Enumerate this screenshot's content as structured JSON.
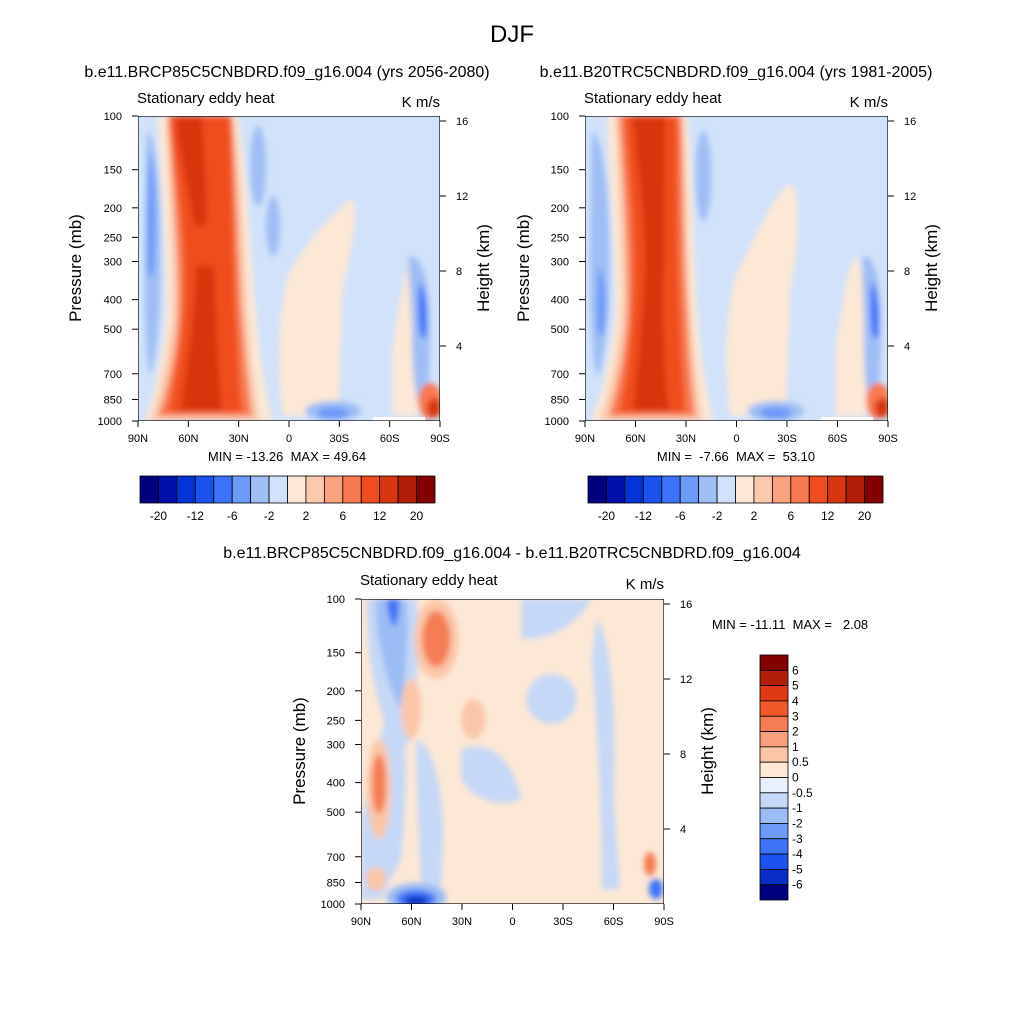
{
  "figure": {
    "title": "DJF"
  },
  "chart_data": [
    {
      "type": "heatmap",
      "title": "b.e11.BRCP85C5CNBDRD.f09_g16.004 (yrs 2056-2080)",
      "left_label": "Stationary eddy heat",
      "units": "K m/s",
      "xlabel": "",
      "ylabel": "Pressure (mb)",
      "ylabel_right": "Height (km)",
      "x_ticks": [
        "90N",
        "60N",
        "30N",
        "0",
        "30S",
        "60S",
        "90S"
      ],
      "y_ticks": [
        "100",
        "150",
        "200",
        "250",
        "300",
        "400",
        "500",
        "700",
        "850",
        "1000"
      ],
      "y_ticks_right": [
        "16",
        "12",
        "8",
        "4"
      ],
      "xlim": [
        90,
        -90
      ],
      "ylim": [
        1000,
        100
      ],
      "stats": "MIN = -13.26  MAX = 49.64",
      "min": -13.26,
      "max": 49.64,
      "colorbar": {
        "orientation": "horizontal",
        "tick_labels": [
          "-20",
          "-12",
          "-6",
          "-2",
          "2",
          "6",
          "12",
          "20"
        ],
        "colors": [
          "#00007d",
          "#0011aa",
          "#0533d5",
          "#1c52ee",
          "#3d73f8",
          "#6c9af8",
          "#9fbef5",
          "#d1e2fa",
          "#fde8d6",
          "#fbc9ad",
          "#f9a27e",
          "#f8794f",
          "#f04d1e",
          "#d83611",
          "#b21f08",
          "#820000"
        ]
      }
    },
    {
      "type": "heatmap",
      "title": "b.e11.B20TRC5CNBDRD.f09_g16.004 (yrs 1981-2005)",
      "left_label": "Stationary eddy heat",
      "units": "K m/s",
      "xlabel": "",
      "ylabel": "Pressure (mb)",
      "ylabel_right": "Height (km)",
      "x_ticks": [
        "90N",
        "60N",
        "30N",
        "0",
        "30S",
        "60S",
        "90S"
      ],
      "y_ticks": [
        "100",
        "150",
        "200",
        "250",
        "300",
        "400",
        "500",
        "700",
        "850",
        "1000"
      ],
      "y_ticks_right": [
        "16",
        "12",
        "8",
        "4"
      ],
      "xlim": [
        90,
        -90
      ],
      "ylim": [
        1000,
        100
      ],
      "stats": "MIN =  -7.66  MAX =  53.10",
      "min": -7.66,
      "max": 53.1,
      "colorbar": {
        "orientation": "horizontal",
        "tick_labels": [
          "-20",
          "-12",
          "-6",
          "-2",
          "2",
          "6",
          "12",
          "20"
        ],
        "colors": [
          "#00007d",
          "#0011aa",
          "#0533d5",
          "#1c52ee",
          "#3d73f8",
          "#6c9af8",
          "#9fbef5",
          "#d1e2fa",
          "#fde8d6",
          "#fbc9ad",
          "#f9a27e",
          "#f8794f",
          "#f04d1e",
          "#d83611",
          "#b21f08",
          "#820000"
        ]
      }
    },
    {
      "type": "heatmap",
      "title": "b.e11.BRCP85C5CNBDRD.f09_g16.004 - b.e11.B20TRC5CNBDRD.f09_g16.004",
      "left_label": "Stationary eddy heat",
      "units": "K m/s",
      "xlabel": "",
      "ylabel": "Pressure (mb)",
      "ylabel_right": "Height (km)",
      "x_ticks": [
        "90N",
        "60N",
        "30N",
        "0",
        "30S",
        "60S",
        "90S"
      ],
      "y_ticks": [
        "100",
        "150",
        "200",
        "250",
        "300",
        "400",
        "500",
        "700",
        "850",
        "1000"
      ],
      "y_ticks_right": [
        "16",
        "12",
        "8",
        "4"
      ],
      "xlim": [
        90,
        -90
      ],
      "ylim": [
        1000,
        100
      ],
      "stats": "MIN = -11.11  MAX =   2.08",
      "min": -11.11,
      "max": 2.08,
      "colorbar": {
        "orientation": "vertical",
        "tick_labels": [
          "6",
          "5",
          "4",
          "3",
          "2",
          "1",
          "0.5",
          "0",
          "-0.5",
          "-1",
          "-2",
          "-3",
          "-4",
          "-5",
          "-6"
        ],
        "colors": [
          "#820000",
          "#b21f08",
          "#e03a12",
          "#f2592a",
          "#f47d55",
          "#f8a07e",
          "#fbc6a8",
          "#fde8d6",
          "#e8f0fb",
          "#c5d8f7",
          "#9bbcf4",
          "#6c9af8",
          "#3d73f8",
          "#1c52ee",
          "#0a2fc8",
          "#00007d"
        ]
      }
    }
  ]
}
